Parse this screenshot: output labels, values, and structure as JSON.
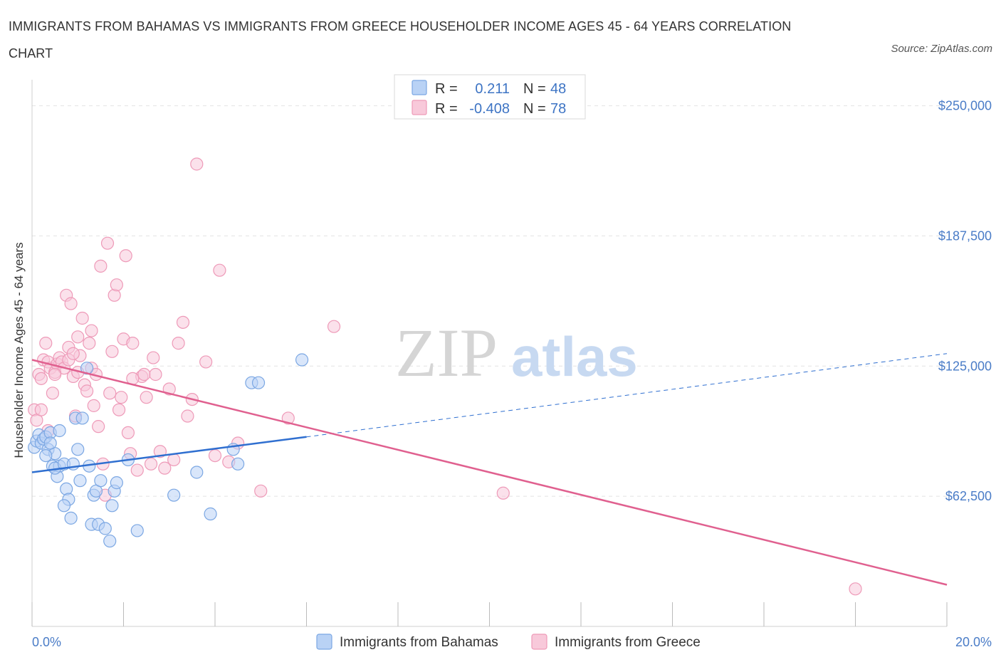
{
  "title": "IMMIGRANTS FROM BAHAMAS VS IMMIGRANTS FROM GREECE HOUSEHOLDER INCOME AGES 45 - 64 YEARS CORRELATION CHART",
  "source": "Source: ZipAtlas.com",
  "watermark": {
    "zip": "ZIP",
    "atlas": "atlas"
  },
  "colors": {
    "bahamas": "#7ba7e3",
    "bahamas_fill": "#b9d2f5",
    "bahamas_line": "#2f6fd0",
    "greece": "#ee9ab8",
    "greece_fill": "#f8c9da",
    "greece_line": "#e0608f",
    "axis_text": "#4a7cc7",
    "grid": "#e2e2e2"
  },
  "legend": {
    "rows": [
      {
        "r_label": "R =",
        "r_value": "0.211",
        "n_label": "N =",
        "n_value": "48"
      },
      {
        "r_label": "R =",
        "r_value": "-0.408",
        "n_label": "N =",
        "n_value": "78"
      }
    ]
  },
  "chart_data": {
    "type": "scatter",
    "title": "IMMIGRANTS FROM BAHAMAS VS IMMIGRANTS FROM GREECE HOUSEHOLDER INCOME AGES 45 - 64 YEARS CORRELATION CHART",
    "xlabel": "",
    "ylabel": "Householder Income Ages 45 - 64 years",
    "xlim": [
      0,
      20
    ],
    "ylim": [
      0,
      262500
    ],
    "x_tick_labels": [
      "0.0%",
      "20.0%"
    ],
    "y_ticks": [
      62500,
      125000,
      187500,
      250000
    ],
    "y_tick_labels": [
      "$62,500",
      "$125,000",
      "$187,500",
      "$250,000"
    ],
    "grid": true,
    "legend_position": "top-center",
    "series": [
      {
        "name": "Immigrants from Bahamas",
        "R": 0.211,
        "N": 48,
        "trend": {
          "x0": 0,
          "y0": 74000,
          "x1": 6.0,
          "y1": 91000,
          "dash_to_x": 20,
          "dash_to_y": 131000
        },
        "points": [
          [
            0.05,
            86000
          ],
          [
            0.1,
            89000
          ],
          [
            0.15,
            92000
          ],
          [
            0.2,
            88000
          ],
          [
            0.25,
            90000
          ],
          [
            0.3,
            91000
          ],
          [
            0.35,
            85000
          ],
          [
            0.4,
            93000
          ],
          [
            0.45,
            77000
          ],
          [
            0.5,
            83000
          ],
          [
            0.55,
            72000
          ],
          [
            0.6,
            77000
          ],
          [
            0.5,
            76000
          ],
          [
            0.7,
            78000
          ],
          [
            0.75,
            66000
          ],
          [
            0.8,
            61000
          ],
          [
            0.7,
            58000
          ],
          [
            0.85,
            52000
          ],
          [
            0.9,
            78000
          ],
          [
            0.95,
            100000
          ],
          [
            1.0,
            85000
          ],
          [
            1.05,
            70000
          ],
          [
            1.1,
            100000
          ],
          [
            1.2,
            124000
          ],
          [
            1.3,
            49000
          ],
          [
            1.35,
            63000
          ],
          [
            1.4,
            65000
          ],
          [
            1.45,
            49000
          ],
          [
            1.5,
            70000
          ],
          [
            1.6,
            47000
          ],
          [
            1.7,
            41000
          ],
          [
            1.75,
            58000
          ],
          [
            1.8,
            65000
          ],
          [
            1.85,
            69000
          ],
          [
            2.1,
            80000
          ],
          [
            2.3,
            46000
          ],
          [
            3.1,
            63000
          ],
          [
            3.6,
            74000
          ],
          [
            3.9,
            54000
          ],
          [
            4.4,
            85000
          ],
          [
            4.5,
            78000
          ],
          [
            4.8,
            117000
          ],
          [
            4.95,
            117000
          ],
          [
            5.9,
            128000
          ],
          [
            0.3,
            82000
          ],
          [
            0.4,
            88000
          ],
          [
            1.25,
            77000
          ],
          [
            0.6,
            94000
          ]
        ]
      },
      {
        "name": "Immigrants from Greece",
        "R": -0.408,
        "N": 78,
        "trend": {
          "x0": 0,
          "y0": 128000,
          "x1": 20,
          "y1": 20000
        },
        "points": [
          [
            0.05,
            104000
          ],
          [
            0.1,
            99000
          ],
          [
            0.15,
            121000
          ],
          [
            0.2,
            119000
          ],
          [
            0.25,
            128000
          ],
          [
            0.3,
            136000
          ],
          [
            0.35,
            127000
          ],
          [
            0.4,
            124000
          ],
          [
            0.45,
            112000
          ],
          [
            0.5,
            122000
          ],
          [
            0.55,
            126000
          ],
          [
            0.6,
            129000
          ],
          [
            0.65,
            127000
          ],
          [
            0.7,
            124000
          ],
          [
            0.75,
            159000
          ],
          [
            0.8,
            128000
          ],
          [
            0.85,
            155000
          ],
          [
            0.9,
            120000
          ],
          [
            0.95,
            101000
          ],
          [
            1.0,
            139000
          ],
          [
            1.05,
            130000
          ],
          [
            1.1,
            148000
          ],
          [
            1.15,
            116000
          ],
          [
            1.2,
            113000
          ],
          [
            1.25,
            136000
          ],
          [
            1.3,
            124000
          ],
          [
            1.35,
            106000
          ],
          [
            1.4,
            121000
          ],
          [
            1.45,
            96000
          ],
          [
            1.5,
            173000
          ],
          [
            1.55,
            78000
          ],
          [
            1.6,
            63000
          ],
          [
            1.65,
            184000
          ],
          [
            1.7,
            112000
          ],
          [
            1.75,
            132000
          ],
          [
            1.8,
            159000
          ],
          [
            1.85,
            164000
          ],
          [
            1.9,
            104000
          ],
          [
            1.95,
            110000
          ],
          [
            2.0,
            138000
          ],
          [
            2.05,
            178000
          ],
          [
            2.1,
            93000
          ],
          [
            2.15,
            83000
          ],
          [
            2.2,
            136000
          ],
          [
            2.3,
            75000
          ],
          [
            2.4,
            120000
          ],
          [
            2.45,
            121000
          ],
          [
            2.5,
            110000
          ],
          [
            2.6,
            78000
          ],
          [
            2.65,
            129000
          ],
          [
            2.7,
            121000
          ],
          [
            2.8,
            84000
          ],
          [
            2.9,
            76000
          ],
          [
            3.0,
            114000
          ],
          [
            3.1,
            80000
          ],
          [
            3.2,
            136000
          ],
          [
            3.3,
            146000
          ],
          [
            3.4,
            101000
          ],
          [
            3.5,
            109000
          ],
          [
            3.6,
            222000
          ],
          [
            3.8,
            127000
          ],
          [
            4.0,
            82000
          ],
          [
            4.1,
            171000
          ],
          [
            4.3,
            79000
          ],
          [
            4.5,
            88000
          ],
          [
            5.0,
            65000
          ],
          [
            5.6,
            100000
          ],
          [
            6.6,
            144000
          ],
          [
            10.3,
            64000
          ],
          [
            18.0,
            18000
          ],
          [
            0.2,
            104000
          ],
          [
            0.35,
            94000
          ],
          [
            0.5,
            121000
          ],
          [
            0.8,
            134000
          ],
          [
            1.0,
            122000
          ],
          [
            1.3,
            142000
          ],
          [
            2.2,
            119000
          ],
          [
            0.9,
            131000
          ]
        ]
      }
    ]
  },
  "bottom_legend": {
    "bahamas": "Immigrants from Bahamas",
    "greece": "Immigrants from Greece"
  }
}
